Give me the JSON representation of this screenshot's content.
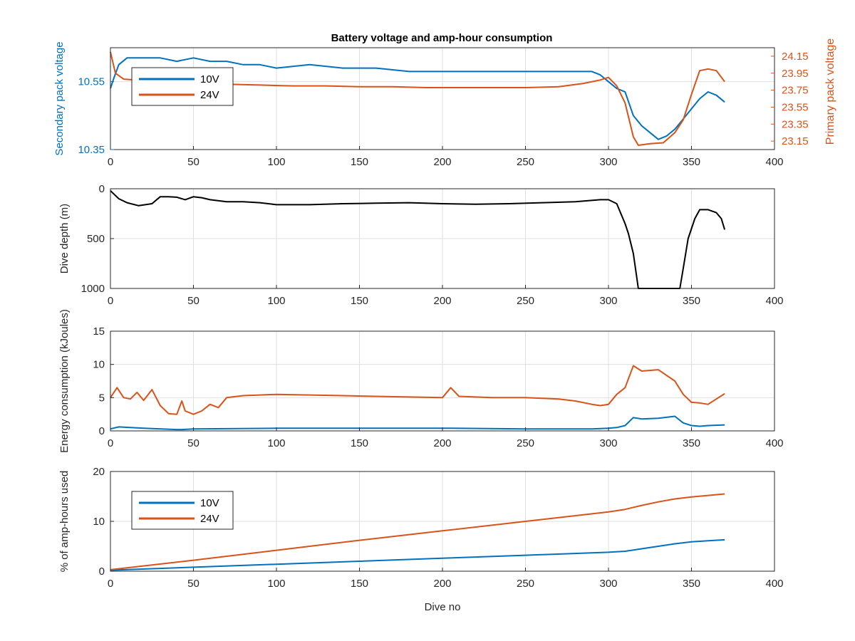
{
  "title": "Battery voltage and amp-hour consumption",
  "colors": {
    "series_10v": "#0072BD",
    "series_24v": "#D95319",
    "black": "#000000",
    "grid": "#DFDFDF",
    "axis": "#262626"
  },
  "chart_data": [
    {
      "type": "line",
      "title": "Battery voltage and amp-hour consumption",
      "xlabel": "",
      "ylabel": "Secondary pack voltage",
      "ylabel_right": "Primary pack voltage",
      "xlim": [
        0,
        400
      ],
      "ylim": [
        10.35,
        10.65
      ],
      "ylim_right": [
        23.05,
        24.25
      ],
      "xticks": [
        "0",
        "50",
        "100",
        "150",
        "200",
        "250",
        "300",
        "350",
        "400"
      ],
      "yticks": [
        "10.35",
        "10.55"
      ],
      "yticks_right": [
        "23.15",
        "23.35",
        "23.55",
        "23.75",
        "23.95",
        "24.15"
      ],
      "grid": true,
      "legend": {
        "placement": "top-left",
        "entries": [
          "10V",
          "24V"
        ]
      },
      "series": [
        {
          "name": "10V",
          "axis": "left",
          "x": [
            0,
            2,
            5,
            10,
            20,
            30,
            40,
            50,
            60,
            70,
            80,
            90,
            100,
            120,
            140,
            160,
            180,
            200,
            220,
            240,
            260,
            280,
            290,
            295,
            300,
            305,
            310,
            315,
            320,
            325,
            330,
            335,
            340,
            345,
            350,
            355,
            360,
            365,
            370
          ],
          "y": [
            10.53,
            10.56,
            10.6,
            10.62,
            10.62,
            10.62,
            10.61,
            10.62,
            10.61,
            10.61,
            10.6,
            10.6,
            10.59,
            10.6,
            10.59,
            10.59,
            10.58,
            10.58,
            10.58,
            10.58,
            10.58,
            10.58,
            10.58,
            10.57,
            10.55,
            10.53,
            10.52,
            10.45,
            10.42,
            10.4,
            10.38,
            10.39,
            10.41,
            10.44,
            10.47,
            10.5,
            10.52,
            10.51,
            10.49
          ]
        },
        {
          "name": "24V",
          "axis": "right",
          "x": [
            0,
            3,
            8,
            15,
            25,
            35,
            45,
            55,
            70,
            90,
            110,
            130,
            150,
            170,
            190,
            210,
            230,
            250,
            270,
            285,
            295,
            300,
            305,
            310,
            315,
            318,
            325,
            333,
            340,
            345,
            350,
            355,
            360,
            365,
            370
          ],
          "y": [
            24.2,
            23.95,
            23.88,
            23.87,
            23.87,
            23.86,
            23.86,
            23.84,
            23.82,
            23.81,
            23.8,
            23.8,
            23.79,
            23.79,
            23.78,
            23.78,
            23.78,
            23.78,
            23.79,
            23.83,
            23.87,
            23.9,
            23.8,
            23.6,
            23.2,
            23.1,
            23.12,
            23.13,
            23.25,
            23.4,
            23.7,
            23.98,
            24.0,
            23.98,
            23.85
          ]
        }
      ]
    },
    {
      "type": "line",
      "xlabel": "",
      "ylabel": "Dive depth (m)",
      "xlim": [
        0,
        400
      ],
      "ylim": [
        0,
        1000
      ],
      "y_reversed": true,
      "xticks": [
        "0",
        "50",
        "100",
        "150",
        "200",
        "250",
        "300",
        "350",
        "400"
      ],
      "yticks": [
        "0",
        "500",
        "1000"
      ],
      "grid": true,
      "series": [
        {
          "name": "",
          "x": [
            0,
            5,
            10,
            17,
            25,
            30,
            35,
            40,
            45,
            50,
            55,
            60,
            70,
            80,
            90,
            100,
            120,
            140,
            160,
            180,
            200,
            220,
            240,
            260,
            280,
            295,
            300,
            305,
            310,
            312,
            315,
            318,
            325,
            335,
            340,
            343,
            345,
            348,
            352,
            355,
            360,
            365,
            368,
            370
          ],
          "y": [
            20,
            100,
            140,
            170,
            150,
            80,
            80,
            85,
            110,
            80,
            90,
            110,
            130,
            130,
            140,
            160,
            160,
            150,
            145,
            140,
            150,
            155,
            150,
            140,
            130,
            110,
            110,
            150,
            350,
            450,
            650,
            1000,
            1000,
            1000,
            1000,
            1000,
            800,
            500,
            300,
            210,
            210,
            240,
            300,
            410
          ]
        }
      ]
    },
    {
      "type": "line",
      "xlabel": "",
      "ylabel": "Energy consumption (kJoules)",
      "xlim": [
        0,
        400
      ],
      "ylim": [
        0,
        15
      ],
      "xticks": [
        "0",
        "50",
        "100",
        "150",
        "200",
        "250",
        "300",
        "350",
        "400"
      ],
      "yticks": [
        "0",
        "5",
        "10",
        "15"
      ],
      "grid": true,
      "series": [
        {
          "name": "24V",
          "x": [
            0,
            4,
            8,
            12,
            16,
            20,
            25,
            30,
            35,
            40,
            43,
            45,
            50,
            55,
            60,
            65,
            70,
            80,
            90,
            100,
            120,
            140,
            160,
            180,
            200,
            205,
            210,
            230,
            250,
            270,
            280,
            290,
            295,
            300,
            305,
            310,
            315,
            320,
            330,
            340,
            345,
            350,
            355,
            360,
            365,
            370
          ],
          "y": [
            5.0,
            6.5,
            5.0,
            4.8,
            5.8,
            4.6,
            6.2,
            3.8,
            2.6,
            2.5,
            4.5,
            3.0,
            2.5,
            3.0,
            4.0,
            3.5,
            5.0,
            5.3,
            5.4,
            5.5,
            5.4,
            5.3,
            5.2,
            5.1,
            5.0,
            6.5,
            5.2,
            5.0,
            5.0,
            4.8,
            4.5,
            4.0,
            3.8,
            4.0,
            5.5,
            6.5,
            9.8,
            9.0,
            9.2,
            7.5,
            5.5,
            4.3,
            4.2,
            4.0,
            4.8,
            5.6
          ]
        },
        {
          "name": "10V",
          "x": [
            0,
            5,
            20,
            40,
            43,
            50,
            100,
            150,
            200,
            206,
            250,
            290,
            300,
            305,
            310,
            315,
            320,
            330,
            340,
            345,
            350,
            355,
            360,
            370
          ],
          "y": [
            0.3,
            0.6,
            0.4,
            0.2,
            0.2,
            0.3,
            0.4,
            0.4,
            0.4,
            0.4,
            0.3,
            0.3,
            0.4,
            0.5,
            0.8,
            2.0,
            1.8,
            1.9,
            2.2,
            1.2,
            0.8,
            0.7,
            0.8,
            0.9
          ]
        }
      ]
    },
    {
      "type": "line",
      "xlabel": "Dive no",
      "ylabel": "% of amp-hours used",
      "xlim": [
        0,
        400
      ],
      "ylim": [
        0,
        20
      ],
      "xticks": [
        "0",
        "50",
        "100",
        "150",
        "200",
        "250",
        "300",
        "350",
        "400"
      ],
      "yticks": [
        "0",
        "10",
        "20"
      ],
      "grid": true,
      "legend": {
        "placement": "top-left",
        "entries": [
          "10V",
          "24V"
        ]
      },
      "series": [
        {
          "name": "10V",
          "x": [
            0,
            50,
            100,
            150,
            200,
            250,
            300,
            310,
            320,
            330,
            340,
            350,
            360,
            370
          ],
          "y": [
            0.2,
            0.8,
            1.4,
            2.0,
            2.6,
            3.2,
            3.8,
            4.0,
            4.5,
            5.0,
            5.5,
            5.9,
            6.1,
            6.3
          ]
        },
        {
          "name": "24V",
          "x": [
            0,
            50,
            100,
            150,
            200,
            250,
            300,
            310,
            320,
            330,
            340,
            350,
            360,
            370
          ],
          "y": [
            0.3,
            2.2,
            4.2,
            6.2,
            8.1,
            10.0,
            11.9,
            12.4,
            13.2,
            13.9,
            14.5,
            14.9,
            15.2,
            15.5
          ]
        }
      ]
    }
  ]
}
